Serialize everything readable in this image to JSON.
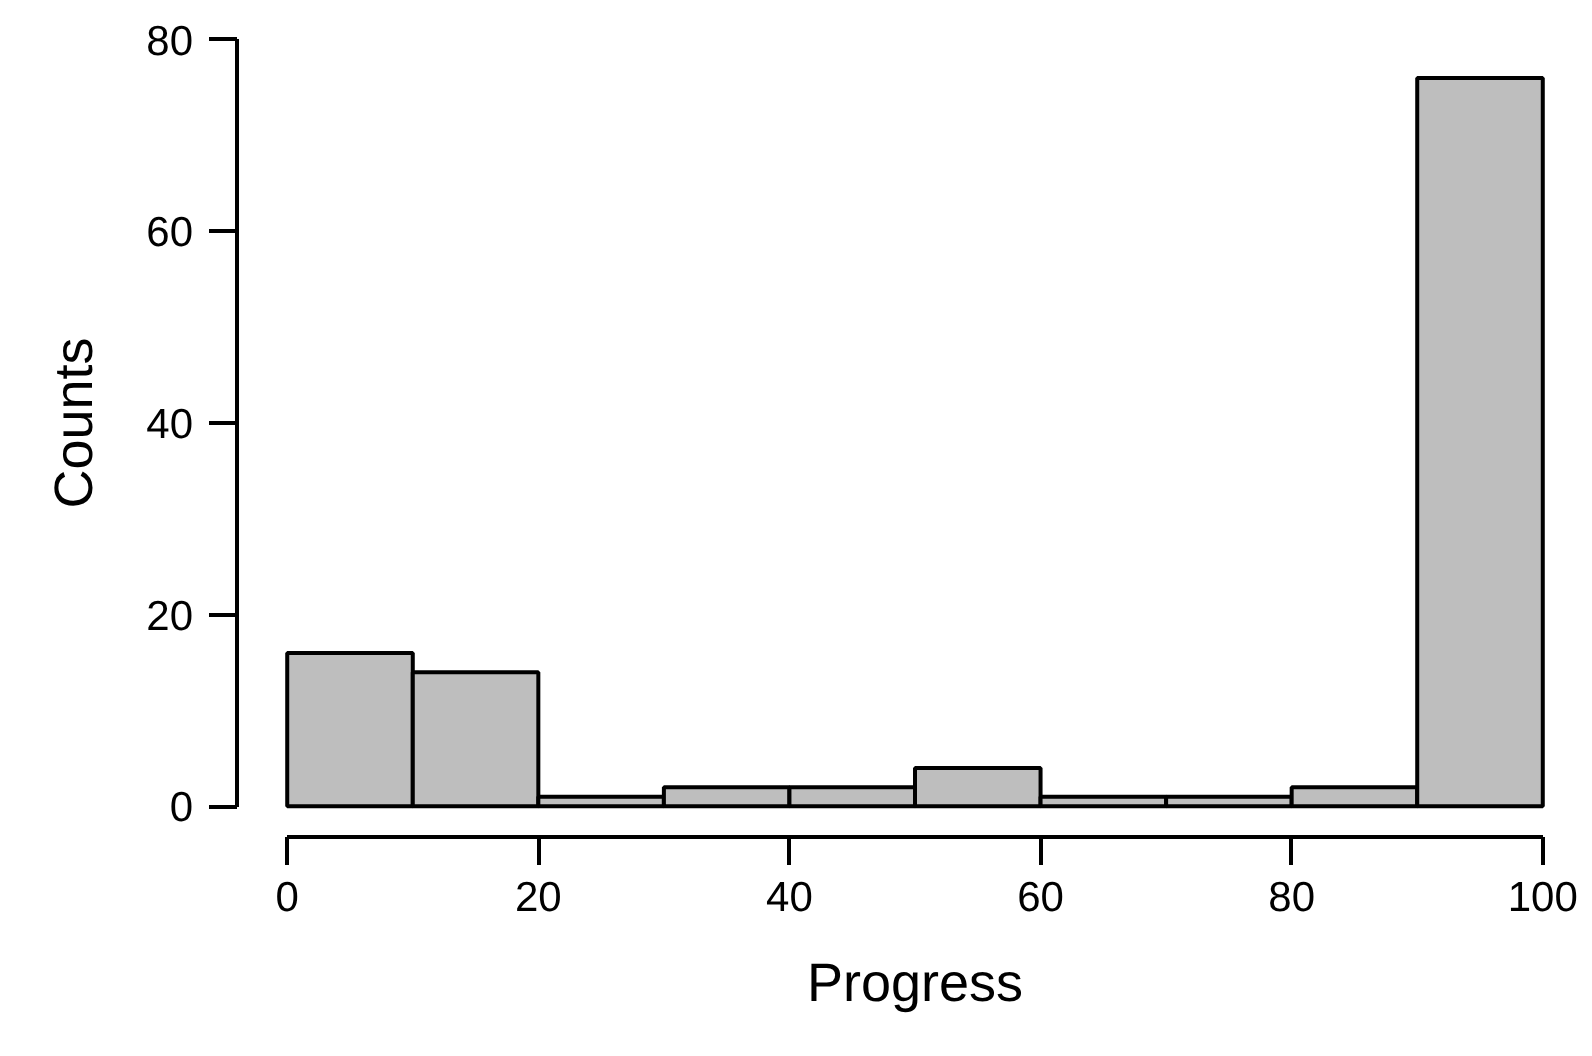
{
  "chart_data": {
    "type": "histogram",
    "xlabel": "Progress",
    "ylabel": "Counts",
    "bins": [
      0,
      10,
      20,
      30,
      40,
      50,
      60,
      70,
      80,
      90,
      100
    ],
    "values": [
      16,
      14,
      1,
      2,
      2,
      4,
      1,
      1,
      2,
      76
    ],
    "color": "#bebebe",
    "xlim": [
      0,
      100
    ],
    "ylim": [
      0,
      80
    ],
    "xticks": [
      0,
      20,
      40,
      60,
      80,
      100
    ],
    "yticks": [
      0,
      20,
      40,
      60,
      80
    ],
    "grid": false
  }
}
